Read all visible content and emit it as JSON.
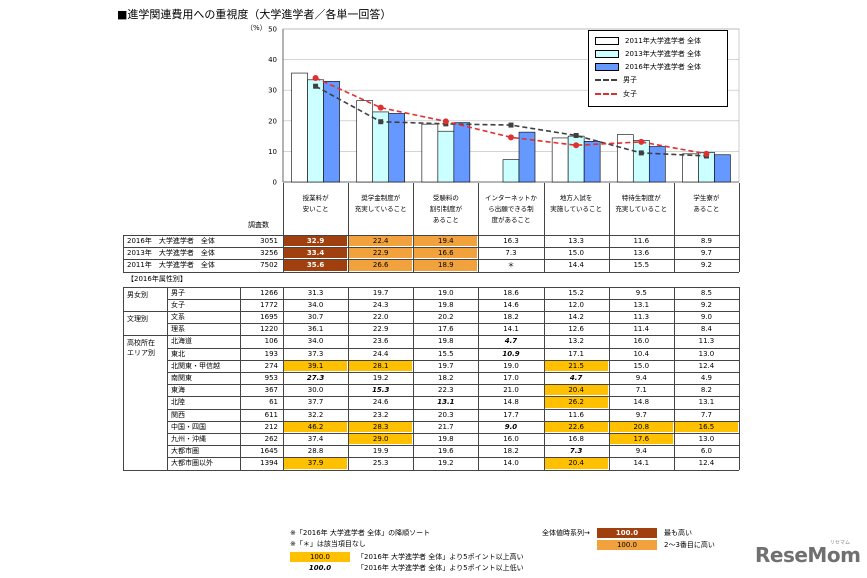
{
  "title": "■進学関連費用への重視度（大学進学者／各単一回答）",
  "unit": "（%）",
  "chart_data": {
    "type": "bar",
    "ylim": [
      0,
      50
    ],
    "yticks": [
      "0",
      "10",
      "20",
      "30",
      "40",
      "50"
    ],
    "categories": [
      "授業料が\n安いこと",
      "奨学金制度が\n充実していること",
      "受験料の\n割引制度が\nあること",
      "インターネットか\nら出願できる制\n度があること",
      "地方入試を\n実施していること",
      "特待生制度が\n充実していること",
      "学生寮が\nあること"
    ],
    "series": [
      {
        "name": "2011年大学進学者 全体",
        "type": "bar",
        "color": "#ffffff",
        "values": [
          35.6,
          26.6,
          18.9,
          null,
          14.4,
          15.5,
          9.2
        ]
      },
      {
        "name": "2013年大学進学者 全体",
        "type": "bar",
        "color": "#ccffff",
        "values": [
          33.4,
          22.9,
          16.6,
          7.3,
          15.0,
          13.6,
          9.7
        ]
      },
      {
        "name": "2016年大学進学者 全体",
        "type": "bar",
        "color": "#6699ff",
        "values": [
          32.9,
          22.4,
          19.4,
          16.3,
          13.3,
          11.6,
          8.9
        ]
      },
      {
        "name": "男子",
        "type": "line",
        "color": "#404040",
        "values": [
          31.3,
          19.7,
          19.0,
          18.6,
          15.2,
          9.5,
          8.5
        ]
      },
      {
        "name": "女子",
        "type": "line",
        "color": "#e03030",
        "values": [
          34.0,
          24.3,
          19.8,
          14.6,
          12.0,
          13.1,
          9.2
        ]
      }
    ]
  },
  "table": {
    "survey_header": "調査数",
    "section_label": "【2016年属性別】",
    "main_rows": [
      {
        "label": "2016年　大学進学者　全体",
        "n": "3051",
        "vals": [
          "32.9",
          "22.4",
          "19.4",
          "16.3",
          "13.3",
          "11.6",
          "8.9"
        ],
        "hl": [
          "dark",
          "orange",
          "orange",
          "",
          "",
          "",
          ""
        ]
      },
      {
        "label": "2013年　大学進学者　全体",
        "n": "3256",
        "vals": [
          "33.4",
          "22.9",
          "16.6",
          "7.3",
          "15.0",
          "13.6",
          "9.7"
        ],
        "hl": [
          "dark",
          "orange",
          "orange",
          "",
          "",
          "",
          ""
        ]
      },
      {
        "label": "2011年　大学進学者　全体",
        "n": "7502",
        "vals": [
          "35.6",
          "26.6",
          "18.9",
          "＊",
          "14.4",
          "15.5",
          "9.2"
        ],
        "hl": [
          "dark",
          "orange",
          "orange",
          "",
          "",
          "",
          ""
        ]
      }
    ],
    "groups": [
      {
        "label": "男女別",
        "rows": [
          {
            "label": "男子",
            "n": "1266",
            "vals": [
              "31.3",
              "19.7",
              "19.0",
              "18.6",
              "15.2",
              "9.5",
              "8.5"
            ],
            "hl": [
              "",
              "",
              "",
              "",
              "",
              "",
              ""
            ],
            "it": [
              "",
              "",
              "",
              "",
              "",
              "",
              ""
            ]
          },
          {
            "label": "女子",
            "n": "1772",
            "vals": [
              "34.0",
              "24.3",
              "19.8",
              "14.6",
              "12.0",
              "13.1",
              "9.2"
            ],
            "hl": [
              "",
              "",
              "",
              "",
              "",
              "",
              ""
            ],
            "it": [
              "",
              "",
              "",
              "",
              "",
              "",
              ""
            ]
          }
        ]
      },
      {
        "label": "文理別",
        "rows": [
          {
            "label": "文系",
            "n": "1695",
            "vals": [
              "30.7",
              "22.0",
              "20.2",
              "18.2",
              "14.2",
              "11.3",
              "9.0"
            ],
            "hl": [
              "",
              "",
              "",
              "",
              "",
              "",
              ""
            ],
            "it": [
              "",
              "",
              "",
              "",
              "",
              "",
              ""
            ]
          },
          {
            "label": "理系",
            "n": "1220",
            "vals": [
              "36.1",
              "22.9",
              "17.6",
              "14.1",
              "12.6",
              "11.4",
              "8.4"
            ],
            "hl": [
              "",
              "",
              "",
              "",
              "",
              "",
              ""
            ],
            "it": [
              "",
              "",
              "",
              "",
              "",
              "",
              ""
            ]
          }
        ]
      },
      {
        "label": "高校所在\nエリア別",
        "rows": [
          {
            "label": "北海道",
            "n": "106",
            "vals": [
              "34.0",
              "23.6",
              "19.8",
              "4.7",
              "13.2",
              "16.0",
              "11.3"
            ],
            "hl": [
              "",
              "",
              "",
              "",
              "",
              "",
              ""
            ],
            "it": [
              "",
              "",
              "",
              "y",
              "",
              "",
              ""
            ]
          },
          {
            "label": "東北",
            "n": "193",
            "vals": [
              "37.3",
              "24.4",
              "15.5",
              "10.9",
              "17.1",
              "10.4",
              "13.0"
            ],
            "hl": [
              "",
              "",
              "",
              "",
              "",
              "",
              ""
            ],
            "it": [
              "",
              "",
              "",
              "y",
              "",
              "",
              ""
            ]
          },
          {
            "label": "北関東・甲信越",
            "n": "274",
            "vals": [
              "39.1",
              "28.1",
              "19.7",
              "19.0",
              "21.5",
              "15.0",
              "12.4"
            ],
            "hl": [
              "y",
              "y",
              "",
              "",
              "y",
              "",
              ""
            ],
            "it": [
              "",
              "",
              "",
              "",
              "",
              "",
              ""
            ]
          },
          {
            "label": "南関東",
            "n": "953",
            "vals": [
              "27.3",
              "19.2",
              "18.2",
              "17.0",
              "4.7",
              "9.4",
              "4.9"
            ],
            "hl": [
              "",
              "",
              "",
              "",
              "",
              "",
              ""
            ],
            "it": [
              "y",
              "",
              "",
              "",
              "y",
              "",
              ""
            ]
          },
          {
            "label": "東海",
            "n": "367",
            "vals": [
              "30.0",
              "15.3",
              "22.3",
              "21.0",
              "20.4",
              "7.1",
              "8.2"
            ],
            "hl": [
              "",
              "",
              "",
              "",
              "y",
              "",
              ""
            ],
            "it": [
              "",
              "y",
              "",
              "",
              "",
              "",
              ""
            ]
          },
          {
            "label": "北陸",
            "n": "61",
            "vals": [
              "37.7",
              "24.6",
              "13.1",
              "14.8",
              "26.2",
              "14.8",
              "13.1"
            ],
            "hl": [
              "",
              "",
              "",
              "",
              "y",
              "",
              ""
            ],
            "it": [
              "",
              "",
              "y",
              "",
              "",
              "",
              ""
            ]
          },
          {
            "label": "関西",
            "n": "611",
            "vals": [
              "32.2",
              "23.2",
              "20.3",
              "17.7",
              "11.6",
              "9.7",
              "7.7"
            ],
            "hl": [
              "",
              "",
              "",
              "",
              "",
              "",
              ""
            ],
            "it": [
              "",
              "",
              "",
              "",
              "",
              "",
              ""
            ]
          },
          {
            "label": "中国・四国",
            "n": "212",
            "vals": [
              "46.2",
              "28.3",
              "21.7",
              "9.0",
              "22.6",
              "20.8",
              "16.5"
            ],
            "hl": [
              "y",
              "y",
              "",
              "",
              "y",
              "y",
              "y"
            ],
            "it": [
              "",
              "",
              "",
              "y",
              "",
              "",
              ""
            ]
          },
          {
            "label": "九州・沖縄",
            "n": "262",
            "vals": [
              "37.4",
              "29.0",
              "19.8",
              "16.0",
              "16.8",
              "17.6",
              "13.0"
            ],
            "hl": [
              "",
              "y",
              "",
              "",
              "",
              "y",
              ""
            ],
            "it": [
              "",
              "",
              "",
              "",
              "",
              "",
              ""
            ]
          },
          {
            "label": "大都市圏",
            "n": "1645",
            "vals": [
              "28.8",
              "19.9",
              "19.6",
              "18.2",
              "7.3",
              "9.4",
              "6.0"
            ],
            "hl": [
              "",
              "",
              "",
              "",
              "",
              "",
              ""
            ],
            "it": [
              "",
              "",
              "",
              "",
              "y",
              "",
              ""
            ]
          },
          {
            "label": "大都市圏以外",
            "n": "1394",
            "vals": [
              "37.9",
              "25.3",
              "19.2",
              "14.0",
              "20.4",
              "14.1",
              "12.4"
            ],
            "hl": [
              "y",
              "",
              "",
              "",
              "y",
              "",
              ""
            ],
            "it": [
              "",
              "",
              "",
              "",
              "",
              "",
              ""
            ]
          }
        ]
      }
    ]
  },
  "notes": {
    "note1": "※「2016年 大学進学者 全体」の降順ソート",
    "note2": "※「＊」は該当項目なし",
    "legend_all_label": "全体値時系列→",
    "legend_highest_val": "100.0",
    "legend_highest_text": "最も高い",
    "legend_second_val": "100.0",
    "legend_second_text": "2～3番目に高い",
    "legend_high_val": "100.0",
    "legend_high_text": "「2016年 大学進学者 全体」より5ポイント以上高い",
    "legend_low_val": "100.0",
    "legend_low_text": "「2016年 大学進学者 全体」より5ポイント以上低い"
  },
  "colors": {
    "dark": "#a0400f",
    "orange": "#f2a23c",
    "yellow": "#ffc000"
  },
  "logo": {
    "text": "ReseMom",
    "sub": "リセマム"
  }
}
